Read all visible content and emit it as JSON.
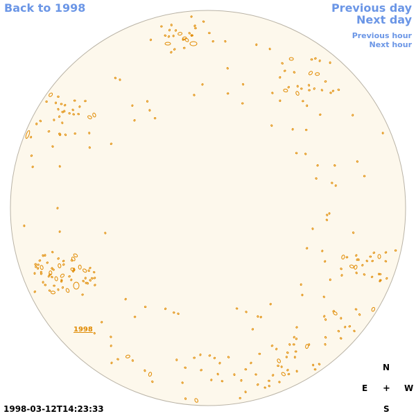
{
  "nav": {
    "back_label": "Back to 1998",
    "prev_day_label": "Previous day",
    "next_day_label": "Next day",
    "prev_hour_label": "Previous hour",
    "next_hour_label": "Next hour"
  },
  "map": {
    "disk_fill": "#fdf8ec",
    "disk_stroke": "#b9b3a6",
    "contour_color": "#e08a00",
    "year_label": "1998"
  },
  "compass": {
    "n": "N",
    "e": "E",
    "center": "+",
    "w": "W",
    "s": "S"
  },
  "timestamp": "1998-03-12T14:23:33"
}
